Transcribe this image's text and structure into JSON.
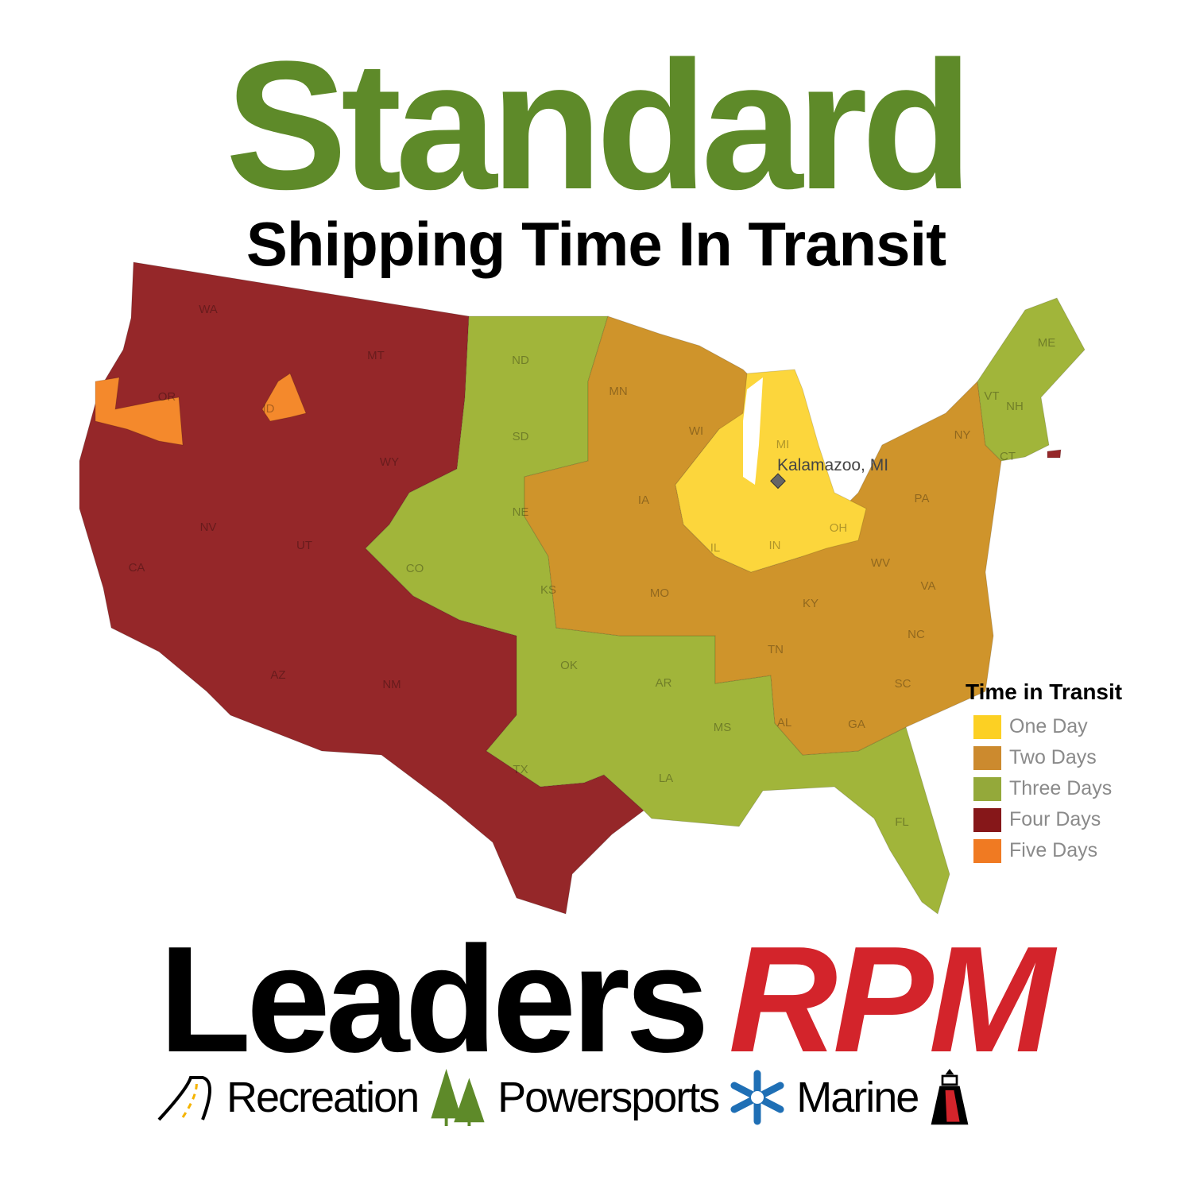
{
  "header": {
    "title": "Standard",
    "subtitle": "Shipping Time In Transit"
  },
  "map": {
    "origin_label": "Kalamazoo, MI",
    "states": [
      "WA",
      "MT",
      "OR",
      "ID",
      "WY",
      "NV",
      "UT",
      "CA",
      "CO",
      "AZ",
      "NM",
      "ND",
      "SD",
      "NE",
      "KS",
      "OK",
      "TX",
      "MN",
      "IA",
      "MO",
      "AR",
      "LA",
      "WI",
      "MI",
      "IL",
      "IN",
      "OH",
      "KY",
      "TN",
      "MS",
      "AL",
      "GA",
      "FL",
      "SC",
      "NC",
      "VA",
      "WV",
      "PA",
      "NY",
      "VT",
      "NH",
      "ME",
      "CT"
    ]
  },
  "legend": {
    "title": "Time in Transit",
    "items": [
      {
        "label": "One Day",
        "color": "#fcd023"
      },
      {
        "label": "Two Days",
        "color": "#cc8a2e"
      },
      {
        "label": "Three Days",
        "color": "#94a93a"
      },
      {
        "label": "Four Days",
        "color": "#861719"
      },
      {
        "label": "Five Days",
        "color": "#f07a22"
      }
    ]
  },
  "map_colors": {
    "one": "#fcd63c",
    "two": "#cf942b",
    "three": "#a1b53a",
    "four": "#952729",
    "five": "#f4892c"
  },
  "brand": {
    "leaders": "Leaders",
    "rpm": "RPM"
  },
  "tagline": {
    "items": [
      "Recreation",
      "Powersports",
      "Marine"
    ]
  }
}
